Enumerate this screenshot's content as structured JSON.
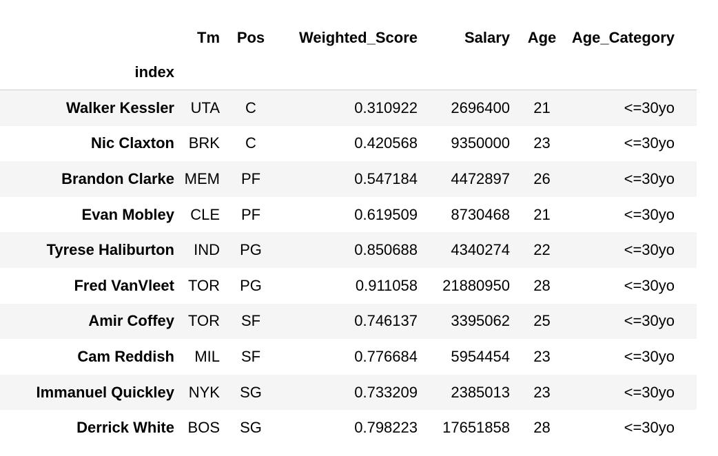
{
  "table": {
    "index_label": "index",
    "columns": [
      "Tm",
      "Pos",
      "Weighted_Score",
      "Salary",
      "Age",
      "Age_Category"
    ],
    "rows": [
      {
        "index": "Walker Kessler",
        "Tm": "UTA",
        "Pos": "C",
        "Weighted_Score": "0.310922",
        "Salary": "2696400",
        "Age": "21",
        "Age_Category": "<=30yo"
      },
      {
        "index": "Nic Claxton",
        "Tm": "BRK",
        "Pos": "C",
        "Weighted_Score": "0.420568",
        "Salary": "9350000",
        "Age": "23",
        "Age_Category": "<=30yo"
      },
      {
        "index": "Brandon Clarke",
        "Tm": "MEM",
        "Pos": "PF",
        "Weighted_Score": "0.547184",
        "Salary": "4472897",
        "Age": "26",
        "Age_Category": "<=30yo"
      },
      {
        "index": "Evan Mobley",
        "Tm": "CLE",
        "Pos": "PF",
        "Weighted_Score": "0.619509",
        "Salary": "8730468",
        "Age": "21",
        "Age_Category": "<=30yo"
      },
      {
        "index": "Tyrese Haliburton",
        "Tm": "IND",
        "Pos": "PG",
        "Weighted_Score": "0.850688",
        "Salary": "4340274",
        "Age": "22",
        "Age_Category": "<=30yo"
      },
      {
        "index": "Fred VanVleet",
        "Tm": "TOR",
        "Pos": "PG",
        "Weighted_Score": "0.911058",
        "Salary": "21880950",
        "Age": "28",
        "Age_Category": "<=30yo"
      },
      {
        "index": "Amir Coffey",
        "Tm": "TOR",
        "Pos": "SF",
        "Weighted_Score": "0.746137",
        "Salary": "3395062",
        "Age": "25",
        "Age_Category": "<=30yo"
      },
      {
        "index": "Cam Reddish",
        "Tm": "MIL",
        "Pos": "SF",
        "Weighted_Score": "0.776684",
        "Salary": "5954454",
        "Age": "23",
        "Age_Category": "<=30yo"
      },
      {
        "index": "Immanuel Quickley",
        "Tm": "NYK",
        "Pos": "SG",
        "Weighted_Score": "0.733209",
        "Salary": "2385013",
        "Age": "23",
        "Age_Category": "<=30yo"
      },
      {
        "index": "Derrick White",
        "Tm": "BOS",
        "Pos": "SG",
        "Weighted_Score": "0.798223",
        "Salary": "17651858",
        "Age": "28",
        "Age_Category": "<=30yo"
      }
    ]
  }
}
